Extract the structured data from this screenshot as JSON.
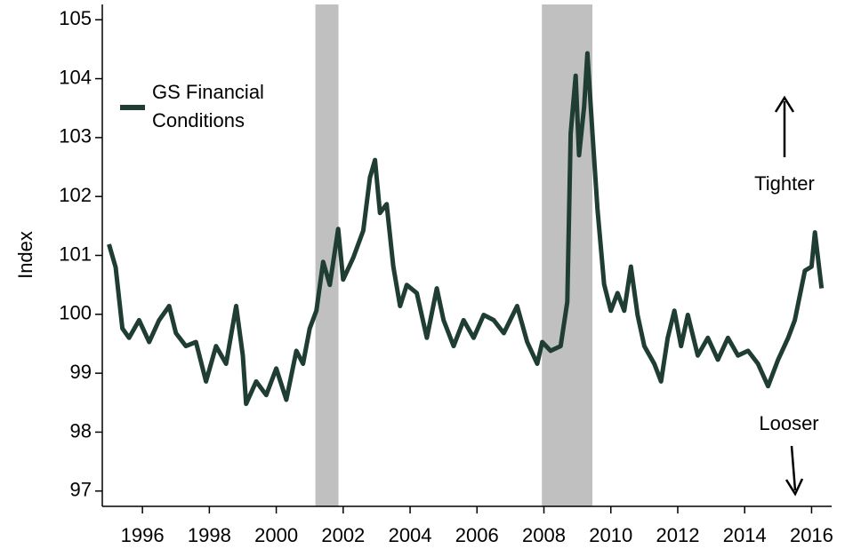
{
  "chart_data": {
    "type": "line",
    "ylabel": "Index",
    "x": [
      1995.0,
      1995.2,
      1995.4,
      1995.6,
      1995.9,
      1996.2,
      1996.5,
      1996.8,
      1997.0,
      1997.3,
      1997.6,
      1997.9,
      1998.2,
      1998.5,
      1998.8,
      1999.0,
      1999.1,
      1999.4,
      1999.7,
      2000.0,
      2000.3,
      2000.6,
      2000.8,
      2001.0,
      2001.2,
      2001.4,
      2001.6,
      2001.85,
      2002.0,
      2002.3,
      2002.6,
      2002.8,
      2002.95,
      2003.1,
      2003.3,
      2003.5,
      2003.7,
      2003.9,
      2004.2,
      2004.5,
      2004.8,
      2005.0,
      2005.3,
      2005.6,
      2005.9,
      2006.2,
      2006.5,
      2006.8,
      2007.2,
      2007.5,
      2007.8,
      2007.95,
      2008.2,
      2008.5,
      2008.7,
      2008.8,
      2008.95,
      2009.05,
      2009.2,
      2009.3,
      2009.45,
      2009.6,
      2009.8,
      2010.0,
      2010.2,
      2010.4,
      2010.6,
      2010.8,
      2011.0,
      2011.3,
      2011.5,
      2011.7,
      2011.9,
      2012.1,
      2012.3,
      2012.6,
      2012.9,
      2013.2,
      2013.5,
      2013.8,
      2014.1,
      2014.4,
      2014.7,
      2015.0,
      2015.3,
      2015.5,
      2015.8,
      2016.0,
      2016.1,
      2016.3
    ],
    "series": [
      {
        "name": "GS Financial Conditions",
        "color": "#1f3d32",
        "values": [
          101.19,
          100.8,
          99.76,
          99.6,
          99.9,
          99.53,
          99.9,
          100.14,
          99.68,
          99.46,
          99.53,
          98.86,
          99.46,
          99.16,
          100.14,
          99.3,
          98.48,
          98.86,
          98.63,
          99.08,
          98.55,
          99.38,
          99.16,
          99.76,
          100.06,
          100.89,
          100.5,
          101.45,
          100.59,
          100.96,
          101.42,
          102.32,
          102.62,
          101.72,
          101.87,
          100.81,
          100.14,
          100.5,
          100.36,
          99.6,
          100.44,
          99.9,
          99.46,
          99.9,
          99.6,
          99.99,
          99.9,
          99.68,
          100.14,
          99.53,
          99.16,
          99.53,
          99.38,
          99.46,
          100.21,
          103.07,
          104.05,
          102.7,
          103.52,
          104.43,
          103.07,
          101.79,
          100.51,
          100.06,
          100.36,
          100.06,
          100.81,
          99.99,
          99.46,
          99.16,
          98.86,
          99.6,
          100.06,
          99.46,
          99.99,
          99.3,
          99.6,
          99.23,
          99.6,
          99.3,
          99.38,
          99.16,
          98.78,
          99.23,
          99.6,
          99.9,
          100.74,
          100.81,
          101.39,
          100.44
        ]
      }
    ],
    "recession_shading": [
      [
        2001.17,
        2001.86
      ],
      [
        2007.94,
        2009.45
      ]
    ],
    "shading_color": "#c0c0c0",
    "xlim": [
      1994.8,
      2016.6
    ],
    "xticks": [
      1996,
      1998,
      2000,
      2002,
      2004,
      2006,
      2008,
      2010,
      2012,
      2014,
      2016
    ],
    "ylim": [
      96.74,
      105.26
    ],
    "yticks": [
      97,
      98,
      99,
      100,
      101,
      102,
      103,
      104,
      105
    ],
    "annotations": [
      "Tighter",
      "Looser"
    ],
    "legend": "top-left"
  }
}
